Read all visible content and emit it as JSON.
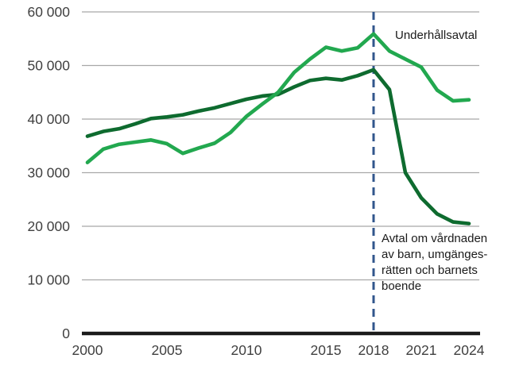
{
  "page": {
    "background": "#ffffff"
  },
  "colors": {
    "grid": "#a8a8a8",
    "axis": "#1a1a1a",
    "tick_text": "#404040",
    "annotation_text": "#1a1a1a"
  },
  "chart_data": {
    "type": "line",
    "title": "",
    "xlabel": "",
    "ylabel": "",
    "grid": true,
    "legend_position": "inline-annotations",
    "ylim": [
      0,
      60000
    ],
    "x": [
      2000,
      2001,
      2002,
      2003,
      2004,
      2005,
      2006,
      2007,
      2008,
      2009,
      2010,
      2011,
      2012,
      2013,
      2014,
      2015,
      2016,
      2017,
      2018,
      2019,
      2020,
      2021,
      2022,
      2023,
      2024
    ],
    "series": [
      {
        "name": "Underhållsavtal",
        "color": "#22a84f",
        "values": [
          31900,
          34400,
          35300,
          35700,
          36100,
          35400,
          33600,
          34600,
          35500,
          37500,
          40500,
          42800,
          45000,
          48700,
          51200,
          53400,
          52700,
          53300,
          55900,
          52700,
          51200,
          49700,
          45400,
          43400,
          43600
        ]
      },
      {
        "name": "Avtal om vårdnaden av barn, umgängesrätten och barnets boende",
        "color": "#0e6b2f",
        "values": [
          36800,
          37700,
          38200,
          39100,
          40100,
          40400,
          40800,
          41500,
          42100,
          42900,
          43700,
          44300,
          44600,
          46000,
          47200,
          47600,
          47300,
          48100,
          49200,
          45500,
          30000,
          25300,
          22300,
          20800,
          20500
        ]
      }
    ],
    "yticks": [
      {
        "value": 0,
        "label": "0"
      },
      {
        "value": 10000,
        "label": "10 000"
      },
      {
        "value": 20000,
        "label": "20 000"
      },
      {
        "value": 30000,
        "label": "30 000"
      },
      {
        "value": 40000,
        "label": "40 000"
      },
      {
        "value": 50000,
        "label": "50 000"
      },
      {
        "value": 60000,
        "label": "60 000"
      }
    ],
    "xticks": [
      {
        "value": 2000,
        "label": "2000"
      },
      {
        "value": 2005,
        "label": "2005"
      },
      {
        "value": 2010,
        "label": "2010"
      },
      {
        "value": 2015,
        "label": "2015"
      },
      {
        "value": 2018,
        "label": "2018"
      },
      {
        "value": 2021,
        "label": "2021"
      },
      {
        "value": 2024,
        "label": "2024"
      }
    ],
    "reference_line": {
      "x": 2018,
      "style": "dashed",
      "color": "#31568c"
    },
    "annotations": {
      "underhallsavtal": {
        "text": "Underhållsavtal"
      },
      "vardnad": {
        "lines": [
          "Avtal om vårdnaden",
          "av barn, umgänges-",
          "rätten och barnets",
          "boende"
        ]
      }
    }
  }
}
